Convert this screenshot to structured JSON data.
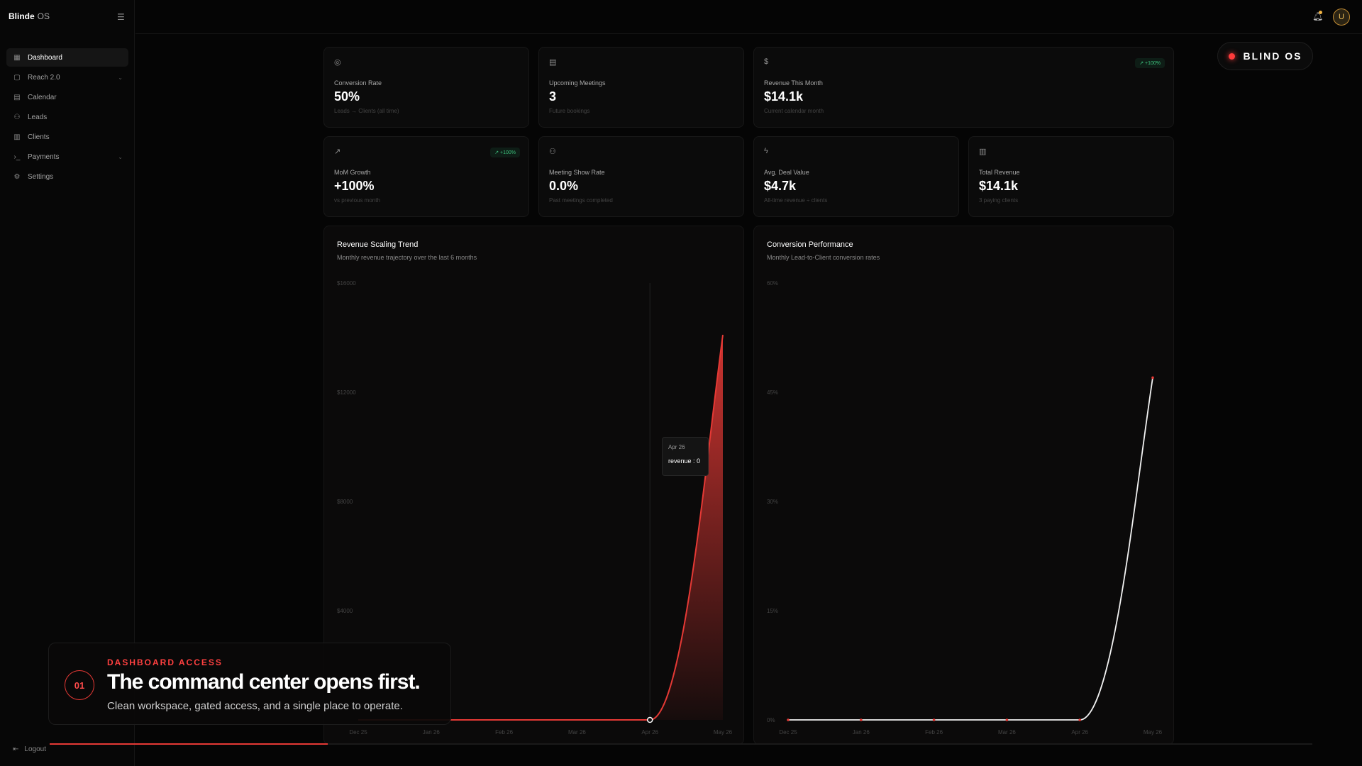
{
  "brand": {
    "name": "Blinde",
    "suffix": "OS"
  },
  "sidebar": {
    "items": [
      {
        "label": "Dashboard",
        "icon": "grid-icon"
      },
      {
        "label": "Reach 2.0",
        "icon": "message-icon"
      },
      {
        "label": "Calendar",
        "icon": "calendar-icon"
      },
      {
        "label": "Leads",
        "icon": "users-icon"
      },
      {
        "label": "Clients",
        "icon": "building-icon"
      },
      {
        "label": "Payments",
        "icon": "terminal-icon"
      },
      {
        "label": "Settings",
        "icon": "gear-icon"
      }
    ],
    "logout": "Logout"
  },
  "header": {
    "avatar": "U",
    "badge": "BLIND OS"
  },
  "stats": {
    "conversion": {
      "label": "Conversion Rate",
      "value": "50%",
      "sub": "Leads → Clients (all time)"
    },
    "meetings": {
      "label": "Upcoming Meetings",
      "value": "3",
      "sub": "Future bookings"
    },
    "revenue_month": {
      "label": "Revenue This Month",
      "value": "$14.1k",
      "sub": "Current calendar month",
      "badge": "↗ +100%"
    },
    "mom": {
      "label": "MoM Growth",
      "value": "+100%",
      "sub": "vs previous month",
      "badge": "↗ +100%"
    },
    "show_rate": {
      "label": "Meeting Show Rate",
      "value": "0.0%",
      "sub": "Past meetings completed"
    },
    "deal": {
      "label": "Avg. Deal Value",
      "value": "$4.7k",
      "sub": "All-time revenue ÷ clients"
    },
    "total": {
      "label": "Total Revenue",
      "value": "$14.1k",
      "sub": "3 paying clients"
    }
  },
  "revenue_chart": {
    "title": "Revenue Scaling Trend",
    "subtitle": "Monthly revenue trajectory over the last 6 months"
  },
  "conversion_chart": {
    "title": "Conversion Performance",
    "subtitle": "Monthly Lead-to-Client conversion rates"
  },
  "tooltip": {
    "date": "Apr 26",
    "value": "revenue : 0"
  },
  "overlay": {
    "number": "01",
    "kicker": "DASHBOARD ACCESS",
    "headline": "The command center opens first.",
    "description": "Clean workspace, gated access, and a single place to operate."
  },
  "colors": {
    "accent": "#e53935",
    "positive": "#3ec37e",
    "avatar": "#efbe59"
  },
  "progress": {
    "value": 0.22
  },
  "chart_data": [
    {
      "type": "area",
      "categories": [
        "Dec 25",
        "Jan 26",
        "Feb 26",
        "Mar 26",
        "Apr 26",
        "May 26"
      ],
      "series": [
        {
          "name": "revenue",
          "values": [
            0,
            0,
            0,
            0,
            0,
            14100
          ]
        }
      ],
      "yticks": [
        "$16000",
        "$12000",
        "$8000",
        "$4000"
      ],
      "ylim": [
        0,
        16000
      ]
    },
    {
      "type": "line",
      "categories": [
        "Dec 25",
        "Jan 26",
        "Feb 26",
        "Mar 26",
        "Apr 26",
        "May 26"
      ],
      "series": [
        {
          "name": "conversion",
          "values": [
            0,
            0,
            0,
            0,
            0,
            47
          ]
        }
      ],
      "yticks": [
        "60%",
        "45%",
        "30%",
        "15%",
        "0%"
      ],
      "ylim": [
        0,
        60
      ]
    }
  ]
}
